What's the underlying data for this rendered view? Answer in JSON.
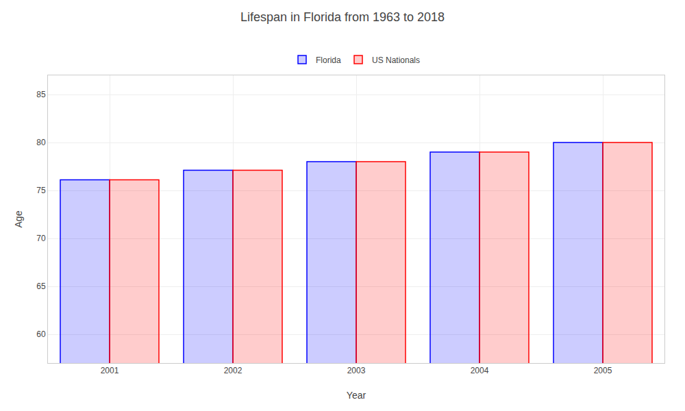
{
  "chart_data": {
    "type": "bar",
    "title": "Lifespan in Florida from 1963 to 2018",
    "xlabel": "Year",
    "ylabel": "Age",
    "categories": [
      "2001",
      "2002",
      "2003",
      "2004",
      "2005"
    ],
    "series": [
      {
        "name": "Florida",
        "color": "#0000ff",
        "values": [
          76.1,
          77.1,
          78.0,
          79.0,
          80.0
        ]
      },
      {
        "name": "US Nationals",
        "color": "#ff0000",
        "values": [
          76.1,
          77.1,
          78.0,
          79.0,
          80.0
        ]
      }
    ],
    "ylim": [
      57,
      87
    ],
    "yticks": [
      60,
      65,
      70,
      75,
      80,
      85
    ],
    "grid": true,
    "legend": "top"
  }
}
